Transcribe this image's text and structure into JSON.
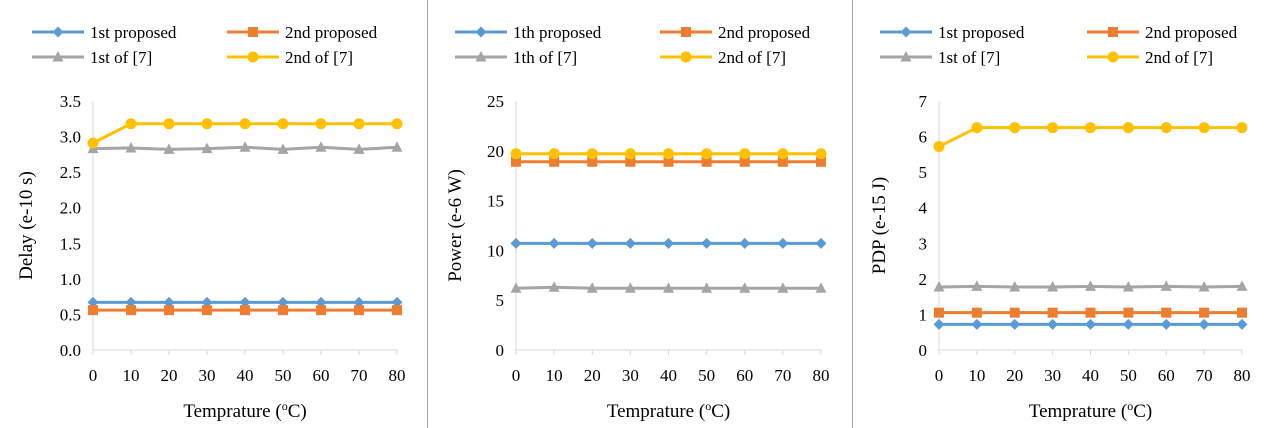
{
  "chart_data": [
    {
      "type": "line",
      "xlabel": "Temprature (",
      "xlabel_sup": "o",
      "xlabel_tail": "C)",
      "ylabel": "Delay (e-10 s)",
      "x": [
        0,
        10,
        20,
        30,
        40,
        50,
        60,
        70,
        80
      ],
      "xlim": [
        0,
        80
      ],
      "ylim": [
        0,
        3.5
      ],
      "yticks": [
        "0.0",
        "0.5",
        "1.0",
        "1.5",
        "2.0",
        "2.5",
        "3.0",
        "3.5"
      ],
      "ytick_values": [
        0,
        0.5,
        1.0,
        1.5,
        2.0,
        2.5,
        3.0,
        3.5
      ],
      "grid": false,
      "legend_position": "top",
      "series": [
        {
          "name": "1st proposed",
          "color": "#5b9bd5",
          "marker": "diamond",
          "values": [
            0.67,
            0.67,
            0.67,
            0.67,
            0.67,
            0.67,
            0.67,
            0.67,
            0.67
          ]
        },
        {
          "name": "2nd proposed",
          "color": "#ed7d31",
          "marker": "square",
          "values": [
            0.56,
            0.56,
            0.56,
            0.56,
            0.56,
            0.56,
            0.56,
            0.56,
            0.56
          ]
        },
        {
          "name": "1st of [7]",
          "color": "#a5a5a5",
          "marker": "triangle",
          "values": [
            2.83,
            2.84,
            2.82,
            2.83,
            2.85,
            2.82,
            2.85,
            2.82,
            2.85
          ]
        },
        {
          "name": "2nd of [7]",
          "color": "#ffc000",
          "marker": "circle",
          "values": [
            2.91,
            3.18,
            3.18,
            3.18,
            3.18,
            3.18,
            3.18,
            3.18,
            3.18
          ]
        }
      ]
    },
    {
      "type": "line",
      "xlabel": "Temprature (",
      "xlabel_sup": "o",
      "xlabel_tail": "C)",
      "ylabel": "Power (e-6 W)",
      "x": [
        0,
        10,
        20,
        30,
        40,
        50,
        60,
        70,
        80
      ],
      "xlim": [
        0,
        80
      ],
      "ylim": [
        0,
        25
      ],
      "yticks": [
        "0",
        "5",
        "10",
        "15",
        "20",
        "25"
      ],
      "ytick_values": [
        0,
        5,
        10,
        15,
        20,
        25
      ],
      "grid": false,
      "legend_position": "top",
      "series": [
        {
          "name": "1th proposed",
          "color": "#5b9bd5",
          "marker": "diamond",
          "values": [
            10.7,
            10.7,
            10.7,
            10.7,
            10.7,
            10.7,
            10.7,
            10.7,
            10.7
          ]
        },
        {
          "name": "2nd proposed",
          "color": "#ed7d31",
          "marker": "square",
          "values": [
            18.9,
            18.9,
            18.9,
            18.9,
            18.9,
            18.9,
            18.9,
            18.9,
            18.9
          ]
        },
        {
          "name": "1th of [7]",
          "color": "#a5a5a5",
          "marker": "triangle",
          "values": [
            6.2,
            6.3,
            6.2,
            6.2,
            6.2,
            6.2,
            6.2,
            6.2,
            6.2
          ]
        },
        {
          "name": "2nd of [7]",
          "color": "#ffc000",
          "marker": "circle",
          "values": [
            19.7,
            19.7,
            19.7,
            19.7,
            19.7,
            19.7,
            19.7,
            19.7,
            19.7
          ]
        }
      ]
    },
    {
      "type": "line",
      "xlabel": "Temprature (",
      "xlabel_sup": "o",
      "xlabel_tail": "C)",
      "ylabel": "PDP (e-15 J)",
      "x": [
        0,
        10,
        20,
        30,
        40,
        50,
        60,
        70,
        80
      ],
      "xlim": [
        0,
        80
      ],
      "ylim": [
        0,
        7
      ],
      "yticks": [
        "0",
        "1",
        "2",
        "3",
        "4",
        "5",
        "6",
        "7"
      ],
      "ytick_values": [
        0,
        1,
        2,
        3,
        4,
        5,
        6,
        7
      ],
      "grid": false,
      "legend_position": "top",
      "series": [
        {
          "name": "1st proposed",
          "color": "#5b9bd5",
          "marker": "diamond",
          "values": [
            0.72,
            0.72,
            0.72,
            0.72,
            0.72,
            0.72,
            0.72,
            0.72,
            0.72
          ]
        },
        {
          "name": "2nd proposed",
          "color": "#ed7d31",
          "marker": "square",
          "values": [
            1.05,
            1.05,
            1.05,
            1.05,
            1.05,
            1.05,
            1.05,
            1.05,
            1.05
          ]
        },
        {
          "name": "1st of [7]",
          "color": "#a5a5a5",
          "marker": "triangle",
          "values": [
            1.77,
            1.79,
            1.77,
            1.77,
            1.79,
            1.77,
            1.79,
            1.77,
            1.79
          ]
        },
        {
          "name": "2nd of [7]",
          "color": "#ffc000",
          "marker": "circle",
          "values": [
            5.72,
            6.25,
            6.25,
            6.25,
            6.25,
            6.25,
            6.25,
            6.25,
            6.25
          ]
        }
      ]
    }
  ]
}
